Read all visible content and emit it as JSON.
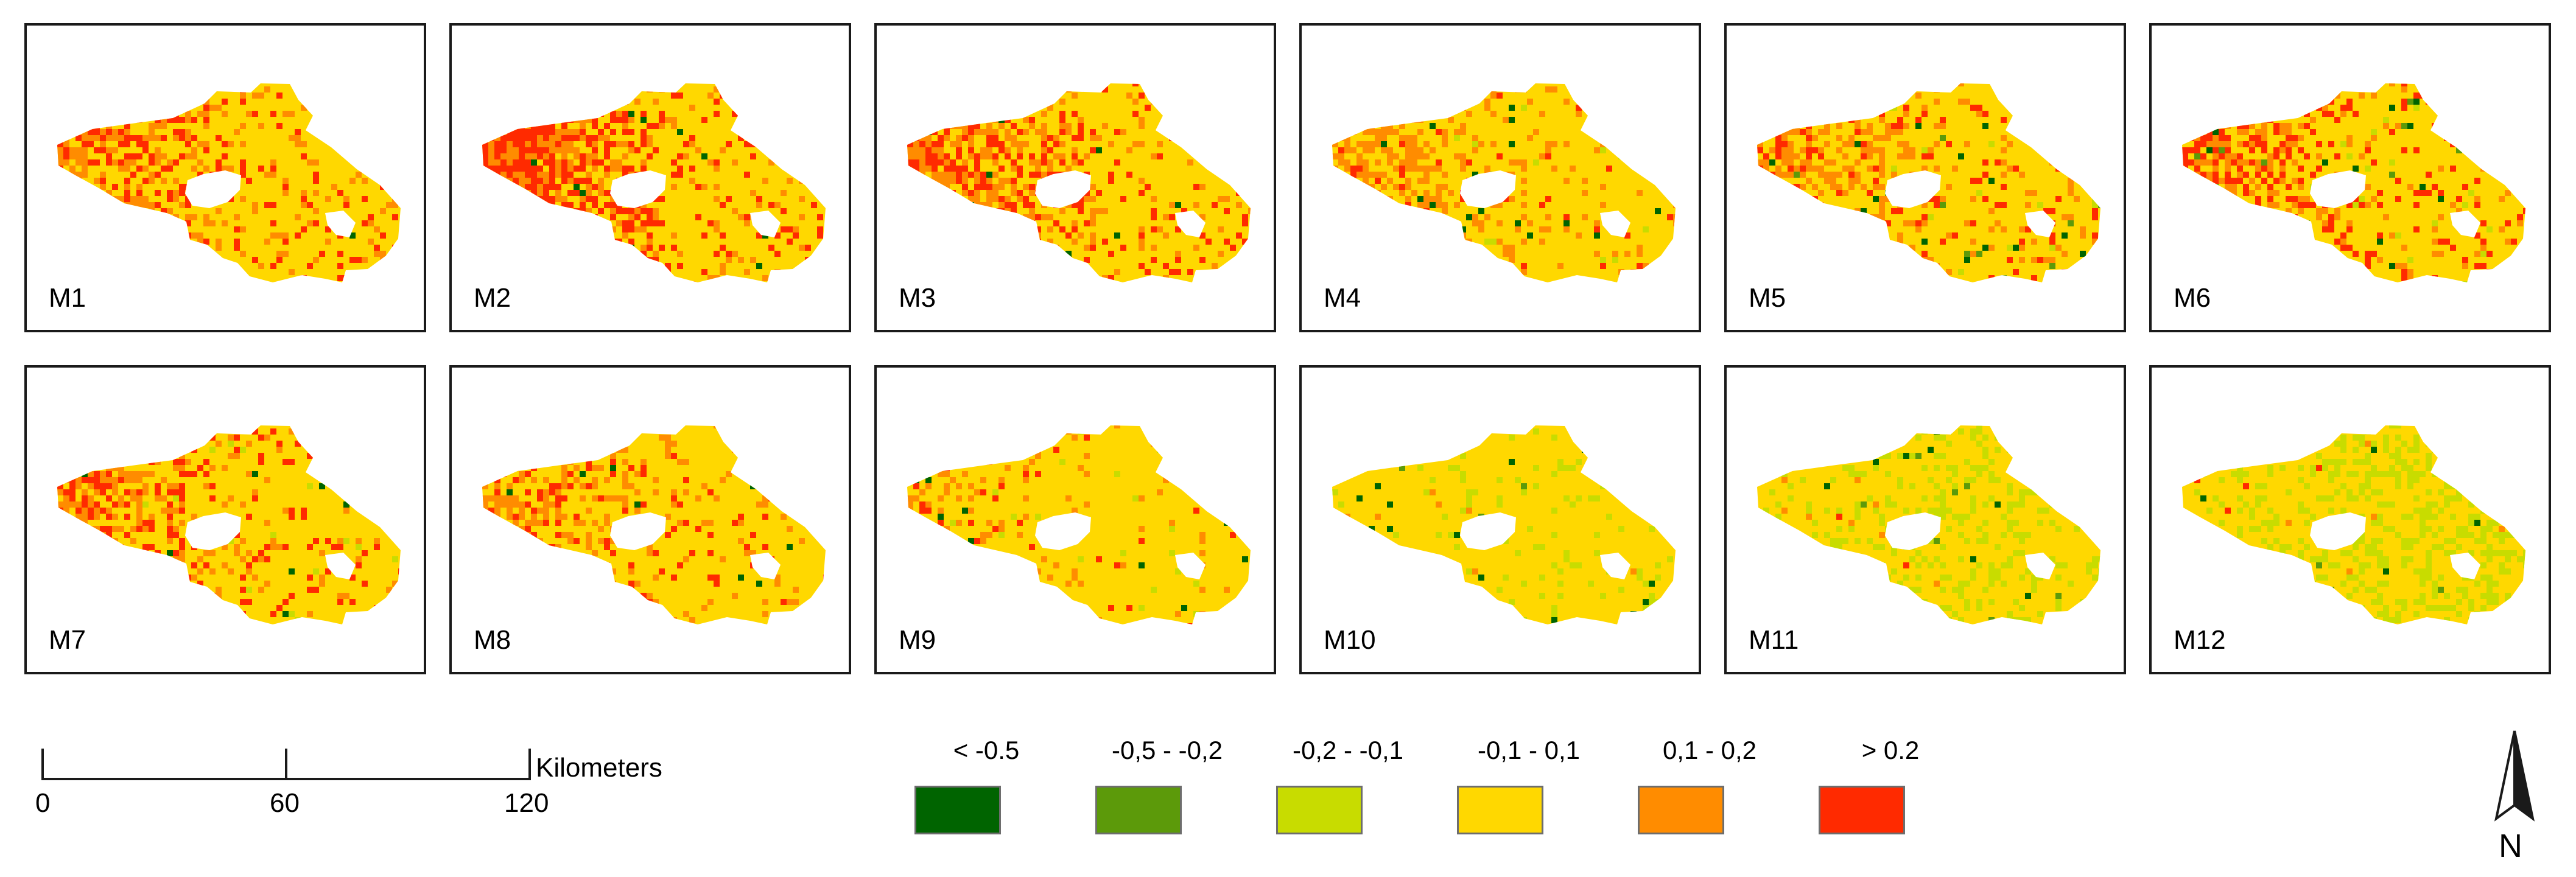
{
  "panels": [
    {
      "label": "M1",
      "pattern": {
        "red": 0.14,
        "orange": 0.3,
        "lime": 0.0,
        "green": 0.0,
        "dark": 0.005
      }
    },
    {
      "label": "M2",
      "pattern": {
        "red": 0.3,
        "orange": 0.32,
        "lime": 0.0,
        "green": 0.0,
        "dark": 0.005
      }
    },
    {
      "label": "M3",
      "pattern": {
        "red": 0.2,
        "orange": 0.32,
        "lime": 0.0,
        "green": 0.0,
        "dark": 0.005
      }
    },
    {
      "label": "M4",
      "pattern": {
        "red": 0.06,
        "orange": 0.3,
        "lime": 0.01,
        "green": 0.0,
        "dark": 0.008
      }
    },
    {
      "label": "M5",
      "pattern": {
        "red": 0.1,
        "orange": 0.3,
        "lime": 0.01,
        "green": 0.006,
        "dark": 0.008
      }
    },
    {
      "label": "M6",
      "pattern": {
        "red": 0.22,
        "orange": 0.26,
        "lime": 0.01,
        "green": 0.006,
        "dark": 0.008
      }
    },
    {
      "label": "M7",
      "pattern": {
        "red": 0.18,
        "orange": 0.24,
        "lime": 0.005,
        "green": 0.0,
        "dark": 0.006
      }
    },
    {
      "label": "M8",
      "pattern": {
        "red": 0.08,
        "orange": 0.24,
        "lime": 0.0,
        "green": 0.0,
        "dark": 0.006
      }
    },
    {
      "label": "M9",
      "pattern": {
        "red": 0.03,
        "orange": 0.1,
        "lime": 0.01,
        "green": 0.0,
        "dark": 0.008
      }
    },
    {
      "label": "M10",
      "pattern": {
        "red": 0.0,
        "orange": 0.01,
        "lime": 0.06,
        "green": 0.003,
        "dark": 0.01
      }
    },
    {
      "label": "M11",
      "pattern": {
        "red": 0.01,
        "orange": 0.01,
        "lime": 0.16,
        "green": 0.006,
        "dark": 0.01
      }
    },
    {
      "label": "M12",
      "pattern": {
        "red": 0.01,
        "orange": 0.01,
        "lime": 0.22,
        "green": 0.006,
        "dark": 0.01
      }
    }
  ],
  "scale_bar": {
    "ticks": [
      "0",
      "60",
      "120"
    ],
    "unit": "Kilometers"
  },
  "legend": {
    "items": [
      {
        "label": "< -0.5",
        "color": "#006400"
      },
      {
        "label": "-0,5 - -0,2",
        "color": "#5c9a0a"
      },
      {
        "label": "-0,2 - -0,1",
        "color": "#c8dc00"
      },
      {
        "label": "-0,1 - 0,1",
        "color": "#ffd800"
      },
      {
        "label": "0,1 - 0,2",
        "color": "#ff8c00"
      },
      {
        "label": "> 0.2",
        "color": "#ff2a00"
      }
    ]
  },
  "north_arrow": {
    "letter": "N"
  }
}
